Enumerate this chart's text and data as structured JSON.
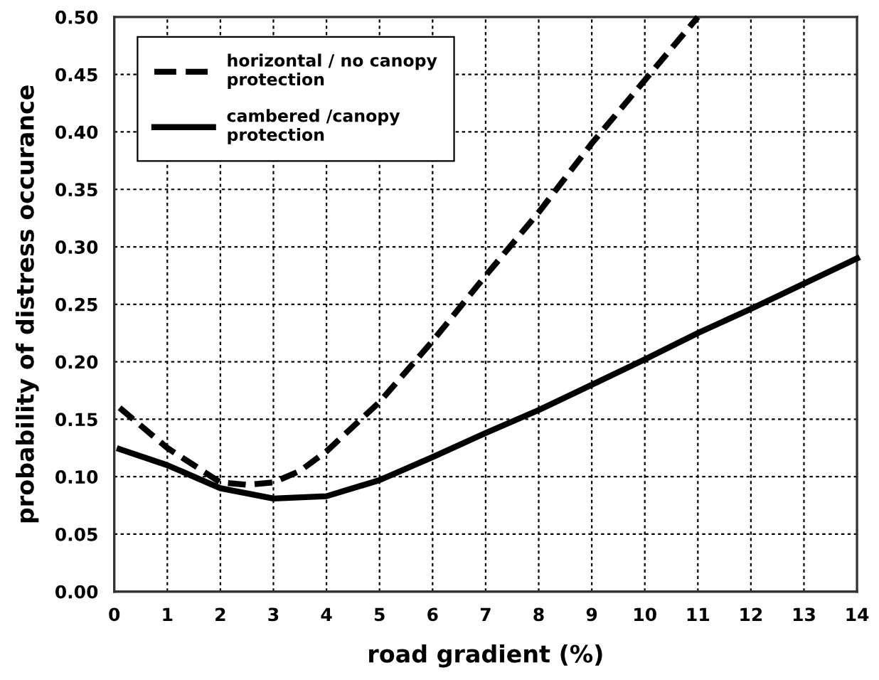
{
  "chart_data": {
    "type": "line",
    "xlabel": "road gradient (%)",
    "ylabel": "probability of distress occurance",
    "xlim": [
      0,
      14
    ],
    "ylim": [
      0,
      0.5
    ],
    "xticks": [
      0,
      1,
      2,
      3,
      4,
      5,
      6,
      7,
      8,
      9,
      10,
      11,
      12,
      13,
      14
    ],
    "yticks": [
      {
        "value": 0,
        "label": "0.00"
      },
      {
        "value": 0.05,
        "label": "0.05"
      },
      {
        "value": 0.1,
        "label": "0.10"
      },
      {
        "value": 0.15,
        "label": "0.15"
      },
      {
        "value": 0.2,
        "label": "0.20"
      },
      {
        "value": 0.25,
        "label": "0.25"
      },
      {
        "value": 0.3,
        "label": "0.30"
      },
      {
        "value": 0.35,
        "label": "0.35"
      },
      {
        "value": 0.4,
        "label": "0.40"
      },
      {
        "value": 0.45,
        "label": "0.45"
      },
      {
        "value": 0.5,
        "label": "0.50"
      }
    ],
    "grid": true,
    "legend": "top left",
    "marker": "none",
    "series": [
      {
        "name": "horizontal / no canopy\nprotection",
        "color": "#000000",
        "line_style": "dashed",
        "x": [
          0.1,
          1,
          2,
          2.5,
          3,
          3.5,
          4,
          5,
          6,
          7,
          8,
          9,
          10,
          11
        ],
        "values": [
          0.16,
          0.125,
          0.095,
          0.093,
          0.095,
          0.105,
          0.122,
          0.165,
          0.218,
          0.275,
          0.33,
          0.39,
          0.445,
          0.5
        ]
      },
      {
        "name": "cambered /canopy\nprotection",
        "color": "#000000",
        "line_style": "solid",
        "x": [
          0.1,
          1,
          2,
          3,
          4,
          5,
          6,
          7,
          8,
          9,
          10,
          11,
          12,
          13,
          14
        ],
        "values": [
          0.124,
          0.11,
          0.09,
          0.081,
          0.083,
          0.097,
          0.117,
          0.138,
          0.158,
          0.18,
          0.202,
          0.225,
          0.246,
          0.268,
          0.29
        ]
      }
    ]
  }
}
